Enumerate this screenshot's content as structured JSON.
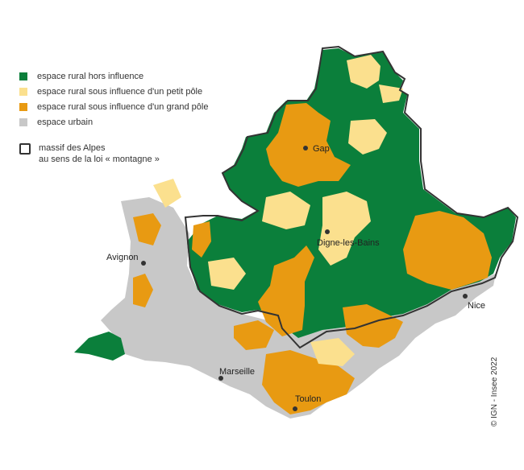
{
  "legend": {
    "items": [
      {
        "label": "espace rural hors influence",
        "color": "#0b7f3b"
      },
      {
        "label": "espace rural sous influence d'un petit pôle",
        "color": "#fbe08e"
      },
      {
        "label": "espace rural sous influence d'un grand pôle",
        "color": "#e89a12"
      },
      {
        "label": "espace urbain",
        "color": "#c8c8c8"
      }
    ],
    "outline_label_line1": "massif des Alpes",
    "outline_label_line2": "au sens de la loi « montagne »"
  },
  "cities": [
    {
      "name": "Gap"
    },
    {
      "name": "Digne-les-Bains"
    },
    {
      "name": "Avignon"
    },
    {
      "name": "Nice"
    },
    {
      "name": "Marseille"
    },
    {
      "name": "Toulon"
    }
  ],
  "credit": "© IGN - Insee 2022"
}
